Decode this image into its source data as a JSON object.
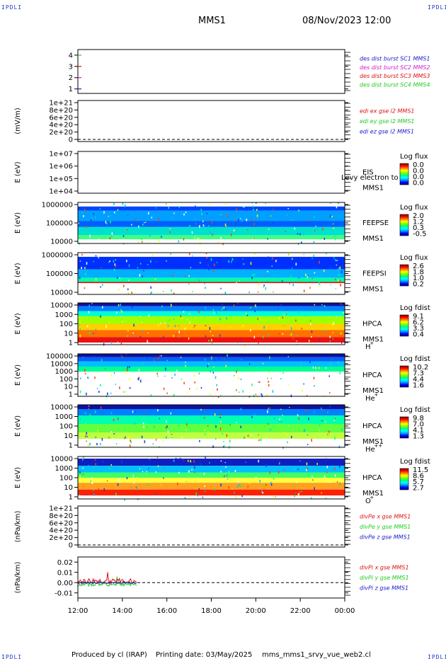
{
  "corner_tag": "IPDLI",
  "header": {
    "spacecraft": "MMS1",
    "datetime": "08/Nov/2023 12:00"
  },
  "footer": {
    "produced_by": "Produced by cl (IRAP)",
    "printing_date": "Printing date: 03/May/2025",
    "script_name": "mms_mms1_srvy_vue_web2.cl"
  },
  "colors": {
    "blue": "#1a1acc",
    "magenta": "#cc22cc",
    "red": "#dd1111",
    "green": "#22cc22",
    "colorbar": [
      "#000080",
      "#0000ff",
      "#00a0ff",
      "#00ffff",
      "#00ff80",
      "#80ff00",
      "#ffff00",
      "#ff8000",
      "#ff0000",
      "#800000"
    ]
  },
  "chart_data": [
    {
      "id": "p1",
      "type": "line",
      "ylabel": "",
      "yticks": [
        "4",
        "3",
        "2",
        "1"
      ],
      "ylim": [
        0.6,
        4.5
      ],
      "legend": [
        {
          "text": "des dist burst SC1 MMS1",
          "color": "blue"
        },
        {
          "text": "des dist burst SC2 MMS2",
          "color": "magenta"
        },
        {
          "text": "des dist burst SC3 MMS3",
          "color": "red"
        },
        {
          "text": "des dist burst SC4 MMS4",
          "color": "green"
        }
      ],
      "series": [
        {
          "name": "SC1",
          "color": "blue",
          "level": 1
        },
        {
          "name": "SC2",
          "color": "magenta",
          "level": 2
        },
        {
          "name": "SC3",
          "color": "red",
          "level": 3
        },
        {
          "name": "SC4",
          "color": "green",
          "level": 4
        }
      ]
    },
    {
      "id": "p2",
      "type": "line",
      "ylabel": "(mV/m)",
      "yticks": [
        "1e+21",
        "8e+20",
        "6e+20",
        "4e+20",
        "2e+20",
        "0"
      ],
      "legend": [
        {
          "text": "edi ex gse l2 MMS1",
          "color": "red"
        },
        {
          "text": "edi ey gse l2 MMS1",
          "color": "green"
        },
        {
          "text": "edi ez gse l2 MMS1",
          "color": "blue"
        }
      ]
    },
    {
      "id": "p3",
      "type": "heatmap",
      "ylabel": "E (eV)",
      "yticks": [
        "1e+07",
        "1e+06",
        "1e+05",
        "1e+04"
      ],
      "instrument": "EIS",
      "spacecraft": "MMS1",
      "overlay_text": "Levy electron to",
      "cbar_label": "Log flux",
      "cbar_ticks": [
        "0.0",
        "0.0",
        "0.0",
        "0.0"
      ],
      "empty": true
    },
    {
      "id": "p4",
      "type": "heatmap",
      "ylabel": "E (eV)",
      "yticks": [
        "1000000",
        "100000",
        "10000"
      ],
      "instrument": "FEEPSE",
      "spacecraft": "MMS1",
      "cbar_label": "Log flux",
      "cbar_ticks": [
        "2.0",
        "1.2",
        "0.3",
        "-0.5"
      ]
    },
    {
      "id": "p5",
      "type": "heatmap",
      "ylabel": "E (eV)",
      "yticks": [
        "1000000",
        "100000",
        "10000"
      ],
      "instrument": "FEEPSI",
      "spacecraft": "MMS1",
      "cbar_label": "Log flux",
      "cbar_ticks": [
        "2.6",
        "1.8",
        "1.0",
        "0.2"
      ]
    },
    {
      "id": "p6",
      "type": "heatmap",
      "ylabel": "E (eV)",
      "yticks": [
        "10000",
        "1000",
        "100",
        "10",
        "1"
      ],
      "instrument": "HPCA",
      "spacecraft": "MMS1",
      "species": "H",
      "species_charge": "+",
      "cbar_label": "Log fdist",
      "cbar_ticks": [
        "9.1",
        "6.2",
        "3.3",
        "0.4"
      ]
    },
    {
      "id": "p7",
      "type": "heatmap",
      "ylabel": "E (eV)",
      "yticks": [
        "100000",
        "10000",
        "1000",
        "100",
        "10",
        "1"
      ],
      "instrument": "HPCA",
      "spacecraft": "MMS1",
      "species": "He",
      "species_charge": "+",
      "cbar_label": "Log fdist",
      "cbar_ticks": [
        "10.2",
        "7.3",
        "4.4",
        "1.6"
      ]
    },
    {
      "id": "p8",
      "type": "heatmap",
      "ylabel": "E (eV)",
      "yticks": [
        "10000",
        "1000",
        "100",
        "10",
        "1"
      ],
      "instrument": "HPCA",
      "spacecraft": "MMS1",
      "species": "He",
      "species_charge": "++",
      "cbar_label": "Log fdist",
      "cbar_ticks": [
        "9.8",
        "7.0",
        "4.1",
        "1.3"
      ]
    },
    {
      "id": "p9",
      "type": "heatmap",
      "ylabel": "E (eV)",
      "yticks": [
        "10000",
        "1000",
        "100",
        "10",
        "1"
      ],
      "instrument": "HPCA",
      "spacecraft": "MMS1",
      "species": "O",
      "species_charge": "+",
      "cbar_label": "Log fdist",
      "cbar_ticks": [
        "11.5",
        "8.6",
        "5.7",
        "2.7"
      ]
    },
    {
      "id": "p10",
      "type": "line",
      "ylabel": "(nPa/km)",
      "yticks": [
        "1e+21",
        "8e+20",
        "6e+20",
        "4e+20",
        "2e+20",
        "0"
      ],
      "legend": [
        {
          "text": "divPe x gse MMS1",
          "color": "red"
        },
        {
          "text": "divPe y gse MMS1",
          "color": "green"
        },
        {
          "text": "divPe z gse MMS1",
          "color": "blue"
        }
      ]
    },
    {
      "id": "p11",
      "type": "line",
      "ylabel": "(nPa/km)",
      "yticks": [
        "0.02",
        "0.01",
        "0.00",
        "-0.01"
      ],
      "ylim": [
        -0.015,
        0.025
      ],
      "data_end": "14:40",
      "legend": [
        {
          "text": "divPi x gse MMS1",
          "color": "red"
        },
        {
          "text": "divPi y gse MMS1",
          "color": "green"
        },
        {
          "text": "divPi z gse MMS1",
          "color": "blue"
        }
      ]
    }
  ],
  "xaxis": {
    "ticks": [
      "12:00",
      "14:00",
      "16:00",
      "18:00",
      "20:00",
      "22:00",
      "00:00"
    ]
  }
}
